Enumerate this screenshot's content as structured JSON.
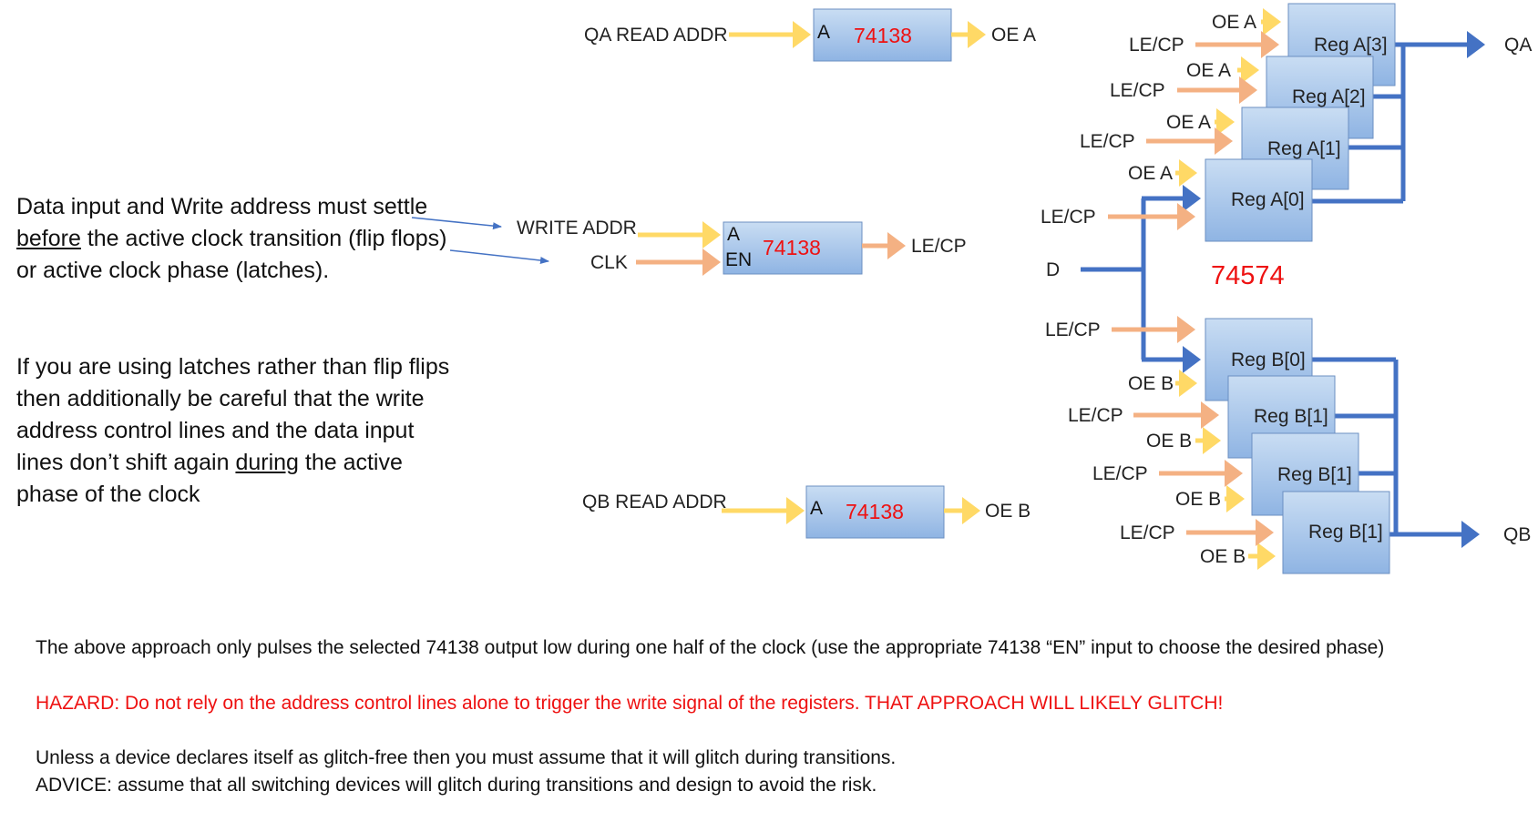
{
  "note": {
    "p1_a": "Data input and Write address must settle ",
    "p1_u": "before",
    "p1_b": " the active clock transition (flip flops) or active clock phase (latches).",
    "p2_a": "If you are using latches rather than flip flips then additionally be careful that the write address control lines and the data input lines don’t shift again ",
    "p2_u": "during",
    "p2_b": " the active phase of the clock"
  },
  "decoders": {
    "qa": {
      "input": "QA READ ADDR",
      "pin": "A",
      "chip": "74138",
      "output": "OE A"
    },
    "write": {
      "input_addr": "WRITE ADDR",
      "input_clk": "CLK",
      "pin_a": "A",
      "pin_en": "EN",
      "chip": "74138",
      "output": "LE/CP"
    },
    "qb": {
      "input": "QB READ ADDR",
      "pin": "A",
      "chip": "74138",
      "output": "OE B"
    }
  },
  "registers": {
    "chip": "74574",
    "data_in": "D",
    "out_a": "QA",
    "out_b": "QB",
    "a": [
      {
        "name": "Reg A[3]",
        "oe": "OE A",
        "le": "LE/CP"
      },
      {
        "name": "Reg A[2]",
        "oe": "OE A",
        "le": "LE/CP"
      },
      {
        "name": "Reg A[1]",
        "oe": "OE A",
        "le": "LE/CP"
      },
      {
        "name": "Reg A[0]",
        "oe": "OE A",
        "le": "LE/CP"
      }
    ],
    "b": [
      {
        "name": "Reg B[0]",
        "oe": "OE B",
        "le": "LE/CP"
      },
      {
        "name": "Reg B[1]",
        "oe": "OE B",
        "le": "LE/CP"
      },
      {
        "name": "Reg B[1]",
        "oe": "OE B",
        "le": "LE/CP"
      },
      {
        "name": "Reg B[1]",
        "oe": "OE B",
        "le": "LE/CP"
      }
    ]
  },
  "footer": {
    "line1": "The above approach only pulses the selected 74138 output low during one half of the clock (use the appropriate 74138 “EN” input to choose the desired phase)",
    "hazard_label": "HAZARD",
    "hazard_text": ": Do not rely on the address control lines alone to trigger the write signal of the registers.    THAT APPROACH WILL LIKELY GLITCH!",
    "line3": "Unless a device declares itself as glitch-free then you must assume that it will glitch during transitions.",
    "line4": "ADVICE: assume that all switching devices will glitch  during transitions and design to avoid the risk."
  },
  "colors": {
    "yellow": "#FFD966",
    "orange": "#F4B183",
    "blue": "#4472C4",
    "red": "#EE1111"
  }
}
